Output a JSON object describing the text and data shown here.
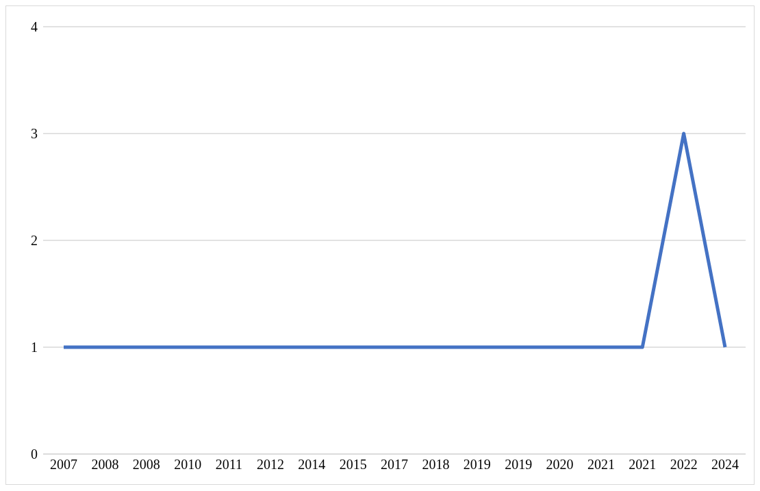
{
  "chart_data": {
    "type": "line",
    "categories": [
      "2007",
      "2008",
      "2008",
      "2010",
      "2011",
      "2012",
      "2014",
      "2015",
      "2017",
      "2018",
      "2019",
      "2019",
      "2020",
      "2021",
      "2021",
      "2022",
      "2024"
    ],
    "series": [
      {
        "color": "#4472c4",
        "values": [
          1,
          1,
          1,
          1,
          1,
          1,
          1,
          1,
          1,
          1,
          1,
          1,
          1,
          1,
          1,
          3,
          1
        ]
      }
    ],
    "ylim": [
      0,
      4
    ],
    "yticks": [
      0,
      1,
      2,
      3,
      4
    ],
    "grid": "y",
    "marker": "none",
    "line_style": "solid"
  }
}
